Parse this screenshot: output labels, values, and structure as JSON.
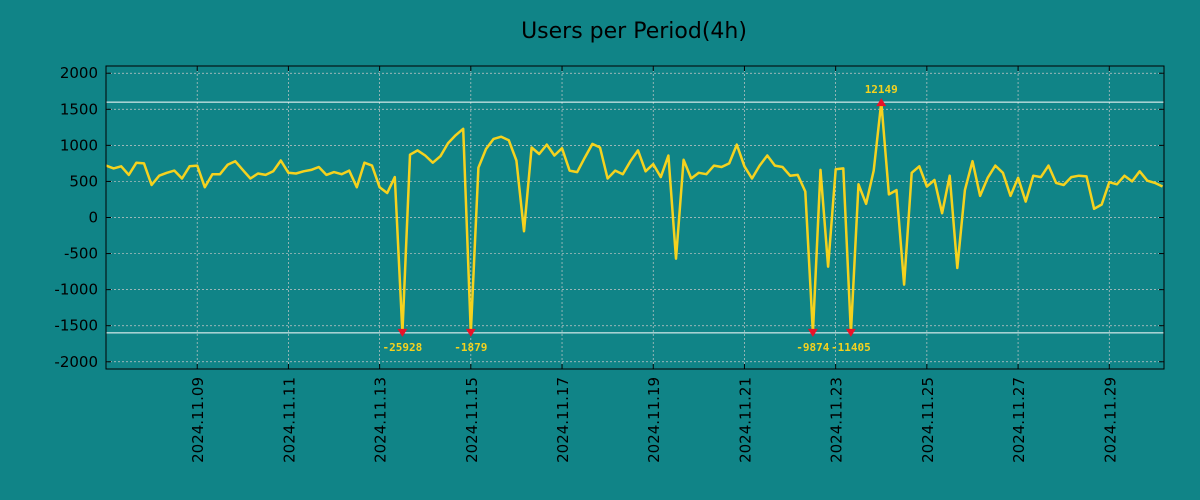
{
  "chart_data": {
    "type": "line",
    "title": "Users per Period(4h)",
    "xlabel": "",
    "ylabel": "",
    "x_start": "2024.11.07 00:00",
    "period_hours": 4,
    "xlim_days": [
      0,
      23.2
    ],
    "ylim": [
      -2100,
      2100
    ],
    "yticks": [
      2000,
      1500,
      1000,
      500,
      0,
      -500,
      -1000,
      -1500,
      -2000
    ],
    "xtick_labels": [
      "2024.11.09",
      "2024.11.11",
      "2024.11.13",
      "2024.11.15",
      "2024.11.17",
      "2024.11.19",
      "2024.11.21",
      "2024.11.23",
      "2024.11.25",
      "2024.11.27",
      "2024.11.29"
    ],
    "xtick_days": [
      2,
      4,
      6,
      8,
      10,
      12,
      14,
      16,
      18,
      20,
      22
    ],
    "hlines": [
      1600,
      -1600
    ],
    "grid": true,
    "line_color": "#f5d21e",
    "marker_color": "#e8132a",
    "hline_color": "#ffffff",
    "series": [
      {
        "name": "Users per Period(4h)",
        "values": [
          720,
          680,
          710,
          590,
          760,
          750,
          450,
          580,
          620,
          650,
          540,
          710,
          720,
          420,
          600,
          600,
          730,
          780,
          660,
          540,
          610,
          590,
          640,
          790,
          620,
          610,
          640,
          660,
          700,
          590,
          630,
          600,
          650,
          420,
          760,
          720,
          420,
          340,
          560,
          -1600,
          870,
          930,
          860,
          760,
          850,
          1030,
          1140,
          1230,
          -1600,
          690,
          950,
          1090,
          1120,
          1070,
          790,
          -190,
          970,
          880,
          1010,
          860,
          960,
          650,
          630,
          830,
          1020,
          970,
          540,
          650,
          600,
          780,
          930,
          640,
          740,
          560,
          860,
          -570,
          800,
          540,
          620,
          600,
          720,
          700,
          750,
          1010,
          710,
          540,
          720,
          860,
          720,
          700,
          580,
          590,
          360,
          -1600,
          660,
          -680,
          670,
          680,
          -1600,
          460,
          190,
          650,
          1600,
          320,
          380,
          -930,
          620,
          710,
          430,
          520,
          60,
          580,
          -700,
          380,
          780,
          300,
          550,
          720,
          620,
          300,
          550,
          220,
          580,
          560,
          720,
          480,
          450,
          560,
          580,
          570,
          120,
          180,
          490,
          460,
          580,
          500,
          640,
          510,
          480,
          430
        ]
      }
    ],
    "annotations": [
      {
        "index": 39,
        "value": -1600,
        "label": "-25928"
      },
      {
        "index": 48,
        "value": -1600,
        "label": "-1879"
      },
      {
        "index": 93,
        "value": -1600,
        "label": "-9874"
      },
      {
        "index": 98,
        "value": -1600,
        "label": "-11405"
      },
      {
        "index": 102,
        "value": 1600,
        "label": "12149"
      }
    ]
  }
}
